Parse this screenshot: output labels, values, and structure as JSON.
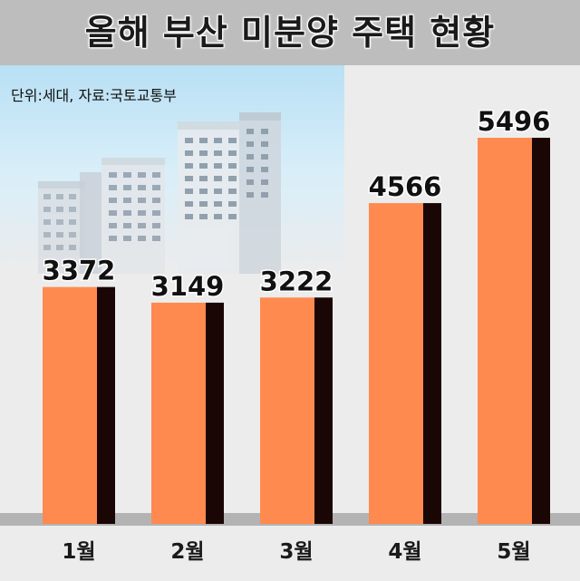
{
  "title": "올해 부산 미분양 주택 현황",
  "source_note": "단위:세대, 자료:국토교통부",
  "colors": {
    "bar_front": "#ff8a4f",
    "bar_side": "#1a0604",
    "floor": "#b3b3b3",
    "label": "#111111"
  },
  "chart_data": {
    "type": "bar",
    "title": "올해 부산 미분양 주택 현황",
    "categories": [
      "1월",
      "2월",
      "3월",
      "4월",
      "5월"
    ],
    "values": [
      3372,
      3149,
      3222,
      4566,
      5496
    ],
    "unit": "세대",
    "ylim": [
      0,
      5496
    ],
    "grid": false,
    "legend": "none"
  }
}
